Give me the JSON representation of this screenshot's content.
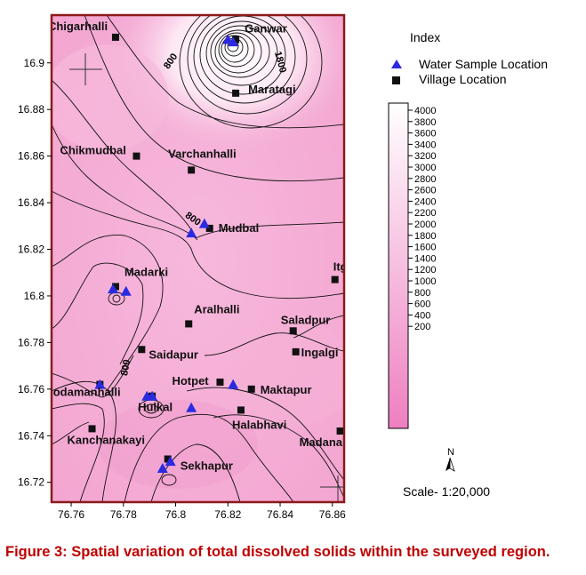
{
  "legend": {
    "title": "Index",
    "water_sample_label": "Water Sample Location",
    "village_label": "Village Location"
  },
  "colorbar": {
    "levels": [
      4000,
      3800,
      3600,
      3400,
      3200,
      3000,
      2800,
      2600,
      2400,
      2200,
      2000,
      1800,
      1600,
      1400,
      1200,
      1000,
      800,
      600,
      400,
      200
    ],
    "low_color": "#ee7fc0",
    "high_color": "#ffffff"
  },
  "x_ticks": [
    76.76,
    76.78,
    76.8,
    76.82,
    76.84,
    76.86
  ],
  "y_ticks": [
    16.9,
    16.88,
    16.86,
    16.84,
    16.82,
    16.8,
    16.78,
    16.76,
    16.74,
    16.72
  ],
  "villages": [
    {
      "name": "Chigarhalli",
      "lon": 76.777,
      "lat": 16.911
    },
    {
      "name": "Ganwar",
      "lon": 76.823,
      "lat": 16.91
    },
    {
      "name": "Maratagi",
      "lon": 76.823,
      "lat": 16.887
    },
    {
      "name": "Chikmudbal",
      "lon": 76.785,
      "lat": 16.86
    },
    {
      "name": "Varchanhalli",
      "lon": 76.806,
      "lat": 16.854
    },
    {
      "name": "Mudbal",
      "lon": 76.813,
      "lat": 16.829
    },
    {
      "name": "Madarki",
      "lon": 76.777,
      "lat": 16.804
    },
    {
      "name": "Itg",
      "lon": 76.861,
      "lat": 16.807
    },
    {
      "name": "Aralhalli",
      "lon": 76.805,
      "lat": 16.788
    },
    {
      "name": "Saladpur",
      "lon": 76.845,
      "lat": 16.785
    },
    {
      "name": "Saidapur",
      "lon": 76.787,
      "lat": 16.777
    },
    {
      "name": "Ingalgi",
      "lon": 76.846,
      "lat": 16.776
    },
    {
      "name": "Hotpet",
      "lon": 76.817,
      "lat": 16.763
    },
    {
      "name": "Maktapur",
      "lon": 76.829,
      "lat": 16.76
    },
    {
      "name": "Kodamanhalli",
      "lon": 76.771,
      "lat": 16.762
    },
    {
      "name": "Hulkal",
      "lon": 76.791,
      "lat": 16.757
    },
    {
      "name": "Halabhavi",
      "lon": 76.825,
      "lat": 16.751
    },
    {
      "name": "Kanchanakayi",
      "lon": 76.768,
      "lat": 16.743
    },
    {
      "name": "Madanal",
      "lon": 76.863,
      "lat": 16.742
    },
    {
      "name": "Sekhapur",
      "lon": 76.797,
      "lat": 16.73
    }
  ],
  "samples": [
    {
      "lon": 76.82,
      "lat": 16.91
    },
    {
      "lon": 76.822,
      "lat": 16.909
    },
    {
      "lon": 76.811,
      "lat": 16.831
    },
    {
      "lon": 76.806,
      "lat": 16.827
    },
    {
      "lon": 76.776,
      "lat": 16.803
    },
    {
      "lon": 76.781,
      "lat": 16.802
    },
    {
      "lon": 76.771,
      "lat": 16.762
    },
    {
      "lon": 76.789,
      "lat": 16.757
    },
    {
      "lon": 76.791,
      "lat": 16.757
    },
    {
      "lon": 76.806,
      "lat": 16.752
    },
    {
      "lon": 76.822,
      "lat": 16.762
    },
    {
      "lon": 76.795,
      "lat": 16.726
    },
    {
      "lon": 76.798,
      "lat": 16.729
    }
  ],
  "contour_labels": [
    {
      "text": "800",
      "lon": 76.799,
      "lat": 16.9
    },
    {
      "text": "1800",
      "lon": 76.839,
      "lat": 16.9
    },
    {
      "text": "800",
      "lon": 76.806,
      "lat": 16.832
    },
    {
      "text": "800",
      "lon": 76.782,
      "lat": 16.769
    }
  ],
  "north_label": "N",
  "scale_text": "Scale- 1:20,000",
  "caption": "Figure 3: Spatial variation of total dissolved solids within the surveyed region."
}
